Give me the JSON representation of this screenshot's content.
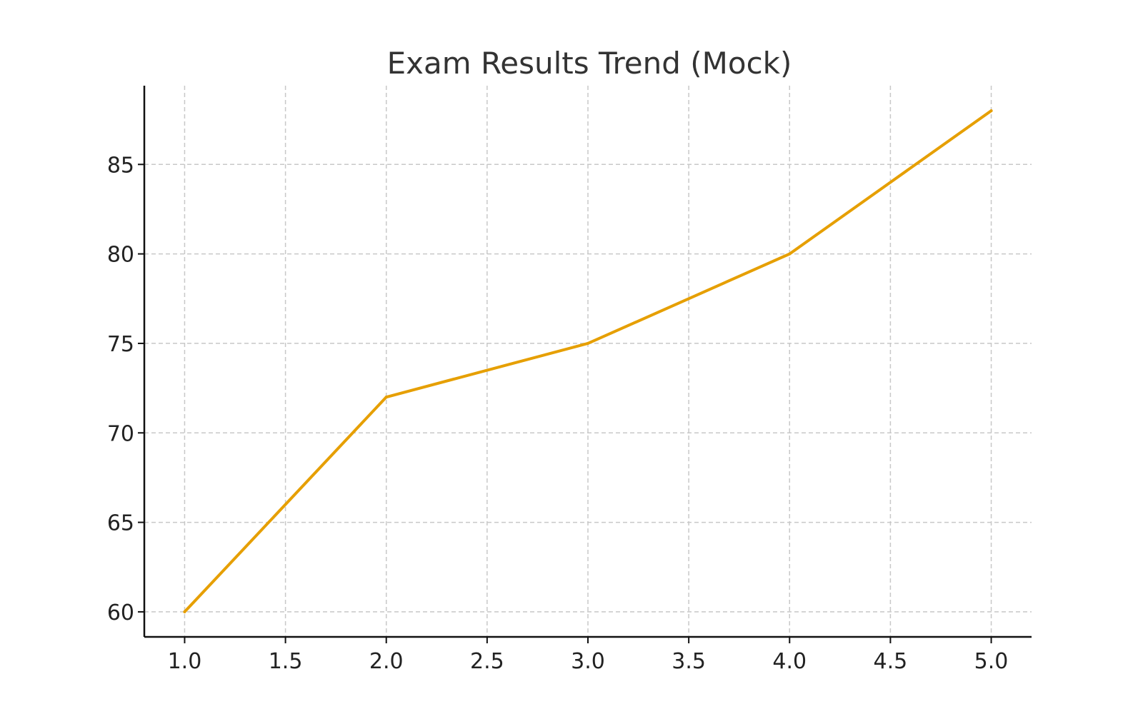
{
  "chart_data": {
    "type": "line",
    "title": "Exam Results Trend (Mock)",
    "xlabel": "",
    "ylabel": "",
    "x": [
      1,
      2,
      3,
      4,
      5
    ],
    "series": [
      {
        "values": [
          60,
          72,
          75,
          80,
          88
        ],
        "color": "#E69F00"
      }
    ],
    "xticks": [
      "1.0",
      "1.5",
      "2.0",
      "2.5",
      "3.0",
      "3.5",
      "4.0",
      "4.5",
      "5.0"
    ],
    "yticks": [
      "60",
      "65",
      "70",
      "75",
      "80",
      "85"
    ],
    "xlim": [
      0.8,
      5.2
    ],
    "ylim": [
      58.6,
      89.4
    ],
    "grid": true,
    "legend": "none"
  }
}
